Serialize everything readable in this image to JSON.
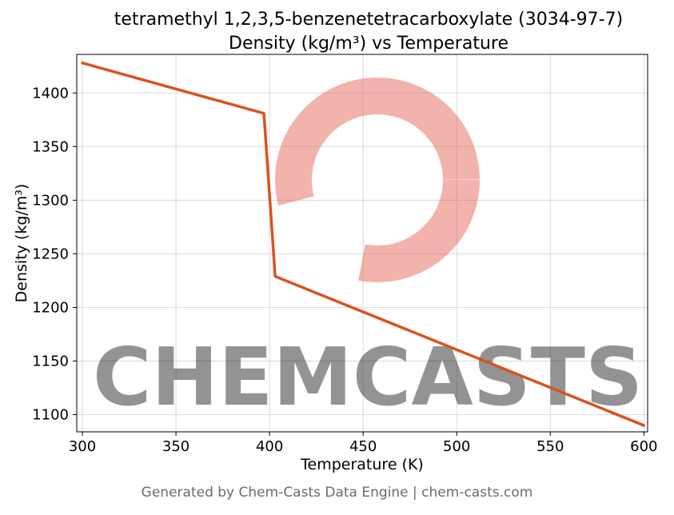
{
  "chart_data": {
    "type": "line",
    "title_line1": "tetramethyl 1,2,3,5-benzenetetracarboxylate (3034-97-7)",
    "title_line2": "Density (kg/m³) vs Temperature",
    "xlabel": "Temperature (K)",
    "ylabel": "Density (kg/m³)",
    "xlim": [
      297,
      602
    ],
    "ylim": [
      1084,
      1436
    ],
    "x_ticks": [
      300,
      350,
      400,
      450,
      500,
      550,
      600
    ],
    "y_ticks": [
      1100,
      1150,
      1200,
      1250,
      1300,
      1350,
      1400
    ],
    "grid": true,
    "grid_color": "#d7d7d7",
    "series": [
      {
        "name": "density",
        "color": "#d9531e",
        "points": [
          [
            300,
            1428
          ],
          [
            397,
            1381
          ],
          [
            403,
            1229
          ],
          [
            600,
            1090
          ]
        ]
      }
    ]
  },
  "watermark": {
    "text": "CHEMCASTS",
    "color": "#dd4b38",
    "opacity": 0.42
  },
  "footer": {
    "text": "Generated by Chem-Casts Data Engine | chem-casts.com"
  }
}
